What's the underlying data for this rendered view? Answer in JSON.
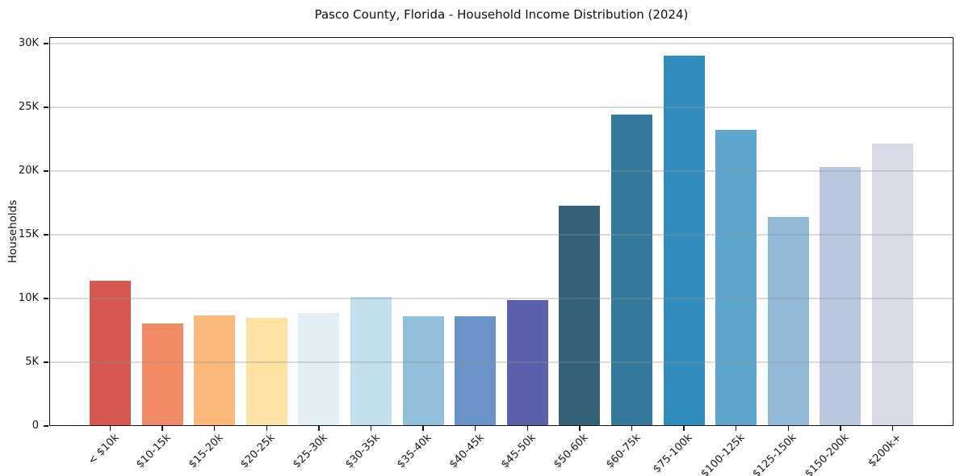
{
  "chart_data": {
    "type": "bar",
    "title": "Pasco County, Florida - Household Income Distribution (2024)",
    "xlabel": "",
    "ylabel": "Households",
    "ylim": [
      0,
      30500
    ],
    "grid": "horizontal-only",
    "legend": false,
    "x_tick_rotation": 45,
    "yticks": [
      {
        "value": 0,
        "label": "0"
      },
      {
        "value": 5000,
        "label": "5K"
      },
      {
        "value": 10000,
        "label": "10K"
      },
      {
        "value": 15000,
        "label": "15K"
      },
      {
        "value": 20000,
        "label": "20K"
      },
      {
        "value": 25000,
        "label": "25K"
      },
      {
        "value": 30000,
        "label": "30K"
      }
    ],
    "categories": [
      "< $10k",
      "$10-15k",
      "$15-20k",
      "$20-25k",
      "$25-30k",
      "$30-35k",
      "$35-40k",
      "$40-45k",
      "$45-50k",
      "$50-60k",
      "$60-75k",
      "$75-100k",
      "$100-125k",
      "$125-150k",
      "$150-200k",
      "$200k+"
    ],
    "values": [
      11400,
      8050,
      8700,
      8500,
      8850,
      10150,
      8600,
      8600,
      9850,
      17250,
      24450,
      29050,
      23250,
      16400,
      20300,
      22150
    ],
    "bar_colors": [
      "#d65850",
      "#f28a63",
      "#fab87a",
      "#fde2a2",
      "#e3eff4",
      "#c2e0ec",
      "#93bfdd",
      "#6b93c7",
      "#5b5fac",
      "#346178",
      "#35799c",
      "#338cbe",
      "#5ea5cb",
      "#93b9d9",
      "#b9c8de",
      "#d9dae7"
    ]
  },
  "colors": {
    "background": "#ffffff",
    "spine": "#141414",
    "gridline_over_white": "#e9e9e9",
    "text": "#181818"
  }
}
